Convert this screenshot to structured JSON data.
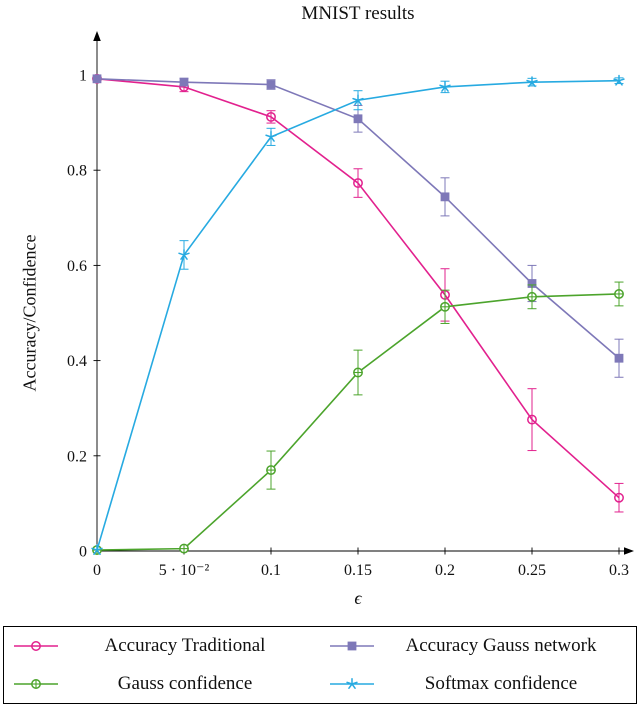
{
  "title": "MNIST results",
  "chart_data": {
    "type": "line",
    "title": "MNIST results",
    "xlabel": "ϵ",
    "ylabel": "Accuracy/Confidence",
    "xlim": [
      0,
      0.3
    ],
    "ylim": [
      0,
      1
    ],
    "grid": false,
    "legend_position": "below",
    "x": [
      0,
      0.05,
      0.1,
      0.15,
      0.2,
      0.25,
      0.3
    ],
    "x_tick_labels": [
      "0",
      "5 · 10⁻²",
      "0.1",
      "0.15",
      "0.2",
      "0.25",
      "0.3"
    ],
    "y_ticks": [
      0,
      0.2,
      0.4,
      0.6,
      0.8,
      1
    ],
    "y_tick_labels": [
      "0",
      "0.2",
      "0.4",
      "0.6",
      "0.8",
      "1"
    ],
    "series": [
      {
        "name": "Accuracy Traditional",
        "color": "#e2218e",
        "marker": "circle",
        "values": [
          0.992,
          0.975,
          0.912,
          0.773,
          0.538,
          0.276,
          0.112
        ],
        "errors": [
          0.004,
          0.01,
          0.013,
          0.03,
          0.055,
          0.065,
          0.03
        ]
      },
      {
        "name": "Accuracy Gauss network",
        "color": "#7e78b8",
        "marker": "square",
        "values": [
          0.992,
          0.985,
          0.98,
          0.908,
          0.744,
          0.562,
          0.405
        ],
        "errors": [
          0.004,
          0.008,
          0.01,
          0.028,
          0.04,
          0.038,
          0.04
        ]
      },
      {
        "name": "Gauss confidence",
        "color": "#4ca42c",
        "marker": "circle-plus",
        "values": [
          0.002,
          0.005,
          0.17,
          0.375,
          0.513,
          0.534,
          0.54
        ],
        "errors": [
          0.002,
          0.003,
          0.04,
          0.047,
          0.035,
          0.025,
          0.025
        ]
      },
      {
        "name": "Softmax confidence",
        "color": "#27aae1",
        "marker": "star",
        "values": [
          0.002,
          0.622,
          0.87,
          0.947,
          0.975,
          0.985,
          0.988
        ],
        "errors": [
          0.0,
          0.03,
          0.018,
          0.02,
          0.012,
          0.008,
          0.006
        ]
      }
    ]
  }
}
